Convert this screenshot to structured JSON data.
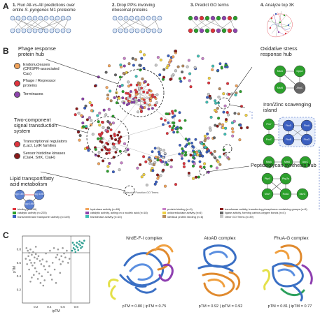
{
  "panels": {
    "A": "A",
    "B": "B",
    "C": "C"
  },
  "steps": [
    {
      "num": "1.",
      "line1": "Run All-vs-All predictions over",
      "line2_pre": "entire ",
      "line2_em": "S. pyogenes",
      "line2_post": " M1 proteome"
    },
    {
      "num": "2.",
      "line1": "Drop PPIs involving",
      "line2_pre": "ribosomal proteins",
      "line2_em": "",
      "line2_post": ""
    },
    {
      "num": "3.",
      "line1": "Predict GO terms",
      "line2_pre": "",
      "line2_em": "",
      "line2_post": ""
    },
    {
      "num": "4.",
      "line1": "Analyze top 3K",
      "line2_pre": "",
      "line2_em": "",
      "line2_post": ""
    }
  ],
  "hubs": {
    "phage": {
      "title": "Phage response protein hub",
      "items": [
        {
          "label": "Endonucleases (CRISPR-associated Cas)",
          "color": "#f2a35a"
        },
        {
          "label": "Phage / Repressor proteins",
          "color": "#e0343d"
        },
        {
          "label": "Terminases",
          "color": "#8e44ad"
        }
      ]
    },
    "twocomp": {
      "title": "Two-component signal transduction system",
      "items": [
        {
          "label": "Transcriptional regulators (LacI, LytR families",
          "color": "#e0343d"
        },
        {
          "label": "Sensor histidine kinases (CiaH, SrtK, CiaH)",
          "color": "#8b1a1a"
        }
      ]
    },
    "lipid": {
      "title": "Lipid transport/fatty acid metabolism",
      "nodes": [
        "Spy 1491",
        "Spy 1490",
        "Spy 1498"
      ]
    },
    "oxidative": {
      "title": "Oxidative stress response hub",
      "nodes": [
        "MsrA",
        "OppA",
        "MsrB",
        "AhpC"
      ]
    },
    "iron": {
      "title": "Iron/Zinc scavenging island",
      "nodes": [
        "FtsY",
        "FhuD",
        "FhuA",
        "FhuB",
        "FhuG",
        "FhuC",
        "MtsA",
        "MtsB",
        "AdcC"
      ]
    },
    "pg": {
      "title": "Peptidoglycan synthesis hub",
      "nodes": [
        "PbpX",
        "Pbp2a",
        "MraY",
        "RodA",
        "MurG"
      ]
    }
  },
  "network_axis_label": "Molecular Function GO Terms",
  "legend": [
    {
      "label": "binding (n=418)",
      "color": "#e0343d"
    },
    {
      "label": "hydrolase activity (n=65)",
      "color": "#f2a35a"
    },
    {
      "label": "protein binding (n=9)",
      "color": "#c77fc7"
    },
    {
      "label": "transferase activity, transferring phosphorus-containing groups (n=5)",
      "color": "#8b1a1a"
    },
    {
      "label": "catalytic activity (n=225)",
      "color": "#2ca02c"
    },
    {
      "label": "catalytic activity, acting on a nucleic acid (n=18)",
      "color": "#8e44ad"
    },
    {
      "label": "oxidoreductase activity (n=6)",
      "color": "#f0d040"
    },
    {
      "label": "ligase activity, forming carbon-oxygen bonds (n=4)",
      "color": "#666666"
    },
    {
      "label": "transmembrane transporter activity (n=149)",
      "color": "#3b5fc0"
    },
    {
      "label": "transferase activity (n=10)",
      "color": "#3fbfb5"
    },
    {
      "label": "identical protein binding (n=6)",
      "color": "#b58a5e"
    },
    {
      "label": "Other GO Terms (n=39)",
      "color": "#c8c8c8"
    }
  ],
  "scatter": {
    "ylabel": "pTM",
    "xlabel": "ipTM",
    "xticks": [
      "0.2",
      "0.4",
      "0.6",
      "0.8"
    ],
    "yticks": [
      "0.2",
      "0.4",
      "0.6",
      "0.8"
    ]
  },
  "complexes": [
    {
      "title": "NrdE-F-I complex",
      "score": "pTM = 0.80 | ipTM = 0.75"
    },
    {
      "title": "AtoAD complex",
      "score": "pTM = 0.92 | ipTM = 0.92"
    },
    {
      "title": "FhuA-G complex",
      "score": "pTM = 0.81 | ipTM = 0.77"
    }
  ],
  "chart_data": {
    "type": "scatter",
    "xlabel": "ipTM",
    "ylabel": "pTM",
    "xlim": [
      0,
      1
    ],
    "ylim": [
      0,
      1
    ],
    "series": [
      {
        "color": "#9a9a9a",
        "points": [
          [
            0.06,
            0.82
          ],
          [
            0.08,
            0.78
          ],
          [
            0.1,
            0.75
          ],
          [
            0.12,
            0.8
          ],
          [
            0.14,
            0.72
          ],
          [
            0.09,
            0.7
          ],
          [
            0.16,
            0.76
          ],
          [
            0.18,
            0.68
          ],
          [
            0.2,
            0.73
          ],
          [
            0.22,
            0.66
          ],
          [
            0.11,
            0.64
          ],
          [
            0.13,
            0.6
          ],
          [
            0.24,
            0.7
          ],
          [
            0.26,
            0.63
          ],
          [
            0.15,
            0.56
          ],
          [
            0.28,
            0.58
          ],
          [
            0.3,
            0.65
          ],
          [
            0.19,
            0.52
          ],
          [
            0.32,
            0.55
          ],
          [
            0.07,
            0.58
          ],
          [
            0.21,
            0.47
          ],
          [
            0.34,
            0.5
          ],
          [
            0.25,
            0.44
          ],
          [
            0.17,
            0.42
          ],
          [
            0.36,
            0.62
          ],
          [
            0.38,
            0.46
          ],
          [
            0.29,
            0.4
          ],
          [
            0.1,
            0.5
          ],
          [
            0.23,
            0.36
          ],
          [
            0.33,
            0.34
          ],
          [
            0.4,
            0.55
          ],
          [
            0.42,
            0.42
          ],
          [
            0.14,
            0.38
          ],
          [
            0.27,
            0.3
          ],
          [
            0.05,
            0.66
          ],
          [
            0.45,
            0.6
          ],
          [
            0.48,
            0.5
          ],
          [
            0.5,
            0.68
          ],
          [
            0.52,
            0.72
          ],
          [
            0.55,
            0.65
          ],
          [
            0.58,
            0.7
          ],
          [
            0.6,
            0.62
          ],
          [
            0.62,
            0.74
          ],
          [
            0.57,
            0.58
          ],
          [
            0.64,
            0.68
          ],
          [
            0.66,
            0.78
          ],
          [
            0.35,
            0.74
          ],
          [
            0.2,
            0.84
          ],
          [
            0.41,
            0.78
          ],
          [
            0.47,
            0.82
          ],
          [
            0.53,
            0.8
          ],
          [
            0.6,
            0.82
          ],
          [
            0.18,
            0.6
          ],
          [
            0.31,
            0.26
          ],
          [
            0.12,
            0.32
          ],
          [
            0.44,
            0.35
          ],
          [
            0.5,
            0.3
          ],
          [
            0.56,
            0.45
          ],
          [
            0.68,
            0.6
          ],
          [
            0.7,
            0.66
          ]
        ]
      },
      {
        "color": "#2a9d8f",
        "points": [
          [
            0.74,
            0.78
          ],
          [
            0.76,
            0.82
          ],
          [
            0.78,
            0.8
          ],
          [
            0.8,
            0.85
          ],
          [
            0.82,
            0.83
          ],
          [
            0.84,
            0.88
          ],
          [
            0.86,
            0.86
          ],
          [
            0.88,
            0.9
          ],
          [
            0.9,
            0.89
          ],
          [
            0.77,
            0.87
          ],
          [
            0.81,
            0.9
          ],
          [
            0.85,
            0.92
          ],
          [
            0.75,
            0.9
          ],
          [
            0.79,
            0.76
          ],
          [
            0.83,
            0.79
          ],
          [
            0.87,
            0.82
          ],
          [
            0.92,
            0.93
          ],
          [
            0.89,
            0.84
          ]
        ]
      }
    ],
    "thresholds": {
      "x": 0.72,
      "y": 0.75
    }
  }
}
